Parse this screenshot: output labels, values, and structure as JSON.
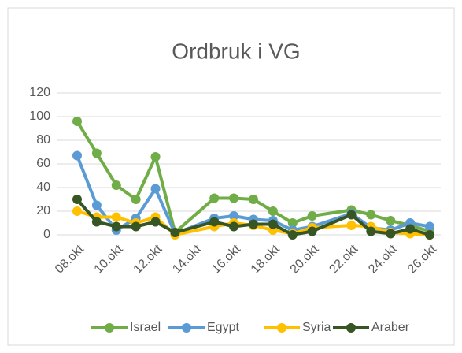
{
  "chart_data": {
    "type": "line",
    "title": "Ordbruk i VG",
    "categories": [
      "08.okt",
      null,
      "10.okt",
      null,
      "12.okt",
      null,
      "14.okt",
      null,
      "16.okt",
      null,
      "18.okt",
      null,
      "20.okt",
      null,
      "22.okt",
      null,
      "24.okt",
      null,
      "26.okt"
    ],
    "series": [
      {
        "name": "Israel",
        "color": "#70ad47",
        "values": [
          96,
          69,
          42,
          30,
          66,
          2,
          null,
          31,
          31,
          30,
          20,
          10,
          16,
          null,
          21,
          17,
          12,
          8,
          3
        ]
      },
      {
        "name": "Egypt",
        "color": "#5b9bd5",
        "values": [
          67,
          25,
          4,
          14,
          39,
          1,
          null,
          14,
          16,
          13,
          12,
          4,
          7,
          null,
          18,
          6,
          4,
          10,
          7
        ]
      },
      {
        "name": "Syria",
        "color": "#ffc000",
        "values": [
          20,
          15,
          15,
          10,
          15,
          0,
          null,
          7,
          10,
          8,
          4,
          1,
          6,
          null,
          8,
          7,
          2,
          1,
          0
        ]
      },
      {
        "name": "Araber",
        "color": "#375623",
        "values": [
          30,
          11,
          7,
          7,
          11,
          2,
          null,
          11,
          7,
          9,
          9,
          0,
          3,
          null,
          17,
          3,
          1,
          5,
          0
        ]
      }
    ],
    "ylim": [
      0,
      120
    ],
    "yticks": [
      0,
      20,
      40,
      60,
      80,
      100,
      120
    ],
    "grid": true,
    "connect_gaps": true,
    "legend": "bottom"
  }
}
